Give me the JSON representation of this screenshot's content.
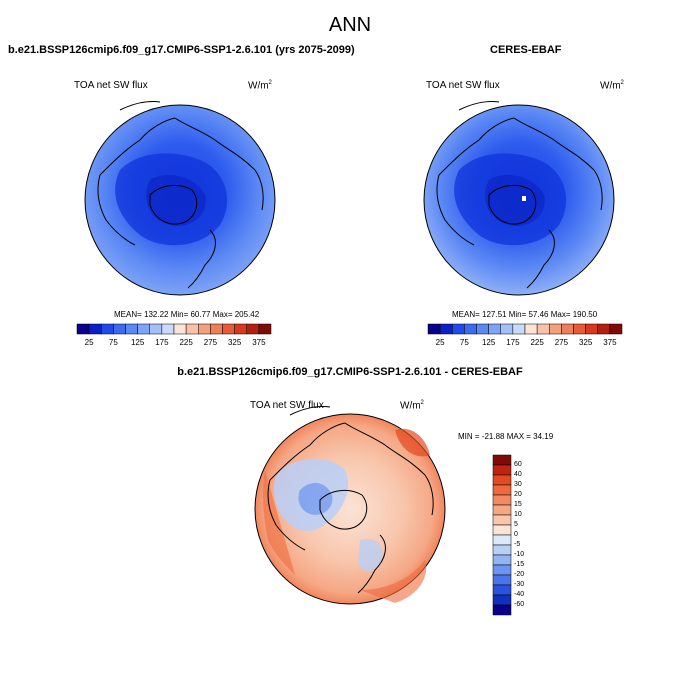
{
  "figure": {
    "title": "ANN",
    "panels": [
      {
        "id": "model",
        "title": "b.e21.BSSP126cmip6.f09_g17.CMIP6-SSP1-2.6.101 (yrs 2075-2099)",
        "left_label": "TOA net SW flux",
        "units": "W/m",
        "units_sup": "2",
        "stats": "MEAN= 132.22  Min=  60.77  Max= 205.42"
      },
      {
        "id": "obs",
        "title": "CERES-EBAF",
        "left_label": "TOA net SW flux",
        "units": "W/m",
        "units_sup": "2",
        "stats": "MEAN= 127.51  Min=  57.46  Max= 190.50"
      },
      {
        "id": "diff",
        "title": "b.e21.BSSP126cmip6.f09_g17.CMIP6-SSP1-2.6.101 - CERES-EBAF",
        "left_label": "TOA net SW flux",
        "units": "W/m",
        "units_sup": "2",
        "stats": "MIN = -21.88 MAX =  34.19"
      }
    ],
    "horizontal_colorbar": {
      "labels": [
        "25",
        "75",
        "125",
        "175",
        "225",
        "275",
        "325",
        "375"
      ],
      "colors": [
        "#08008a",
        "#0a20c6",
        "#1f4bea",
        "#3c6af0",
        "#5b88f4",
        "#7ea4f6",
        "#a3c0f8",
        "#c9dbfb",
        "#fbe3d6",
        "#f8c2a8",
        "#f4a07e",
        "#f07f58",
        "#e95b35",
        "#d8381c",
        "#b41e10",
        "#7f0a06"
      ]
    },
    "vertical_colorbar": {
      "labels": [
        "60",
        "40",
        "30",
        "20",
        "15",
        "10",
        "5",
        "0",
        "-5",
        "-10",
        "-15",
        "-20",
        "-30",
        "-40",
        "-60"
      ],
      "colors": [
        "#7f0a06",
        "#c02410",
        "#e24a22",
        "#ee6a3e",
        "#f28a62",
        "#f5a784",
        "#f8c6ac",
        "#fbe3d6",
        "#dce8fb",
        "#b8cff8",
        "#92b3f4",
        "#6c94f0",
        "#4a74ea",
        "#2a52de",
        "#1030c0",
        "#08008a"
      ]
    }
  }
}
